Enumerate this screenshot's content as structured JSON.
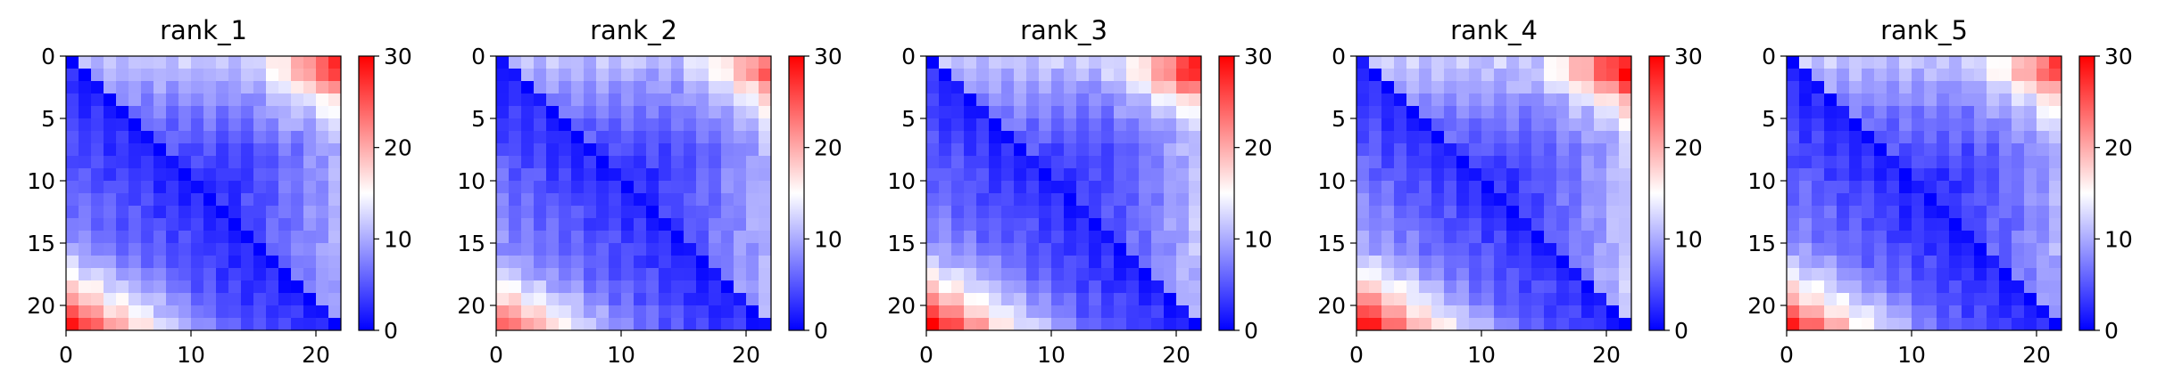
{
  "chart_data": [
    {
      "type": "heatmap",
      "title": "rank_1",
      "shape": [
        22,
        22
      ],
      "min_on_diagonal": 0,
      "cell_value_model": {
        "base": 1.5,
        "slope": 0.45,
        "profile_start": [
          26.5,
          26.5,
          22,
          17,
          12.5,
          10
        ],
        "profile_end": [
          25,
          21,
          18.5,
          17,
          16,
          14.5,
          13,
          11.5
        ],
        "bottom_left_peak": 28
      },
      "xticks": [
        0,
        10,
        20
      ],
      "yticks": [
        0,
        5,
        10,
        15,
        20
      ],
      "colorbar": {
        "min": 0,
        "max": 30,
        "ticks": [
          0,
          10,
          20,
          30
        ]
      }
    },
    {
      "type": "heatmap",
      "title": "rank_2",
      "shape": [
        22,
        22
      ],
      "min_on_diagonal": 0,
      "cell_value_model": {
        "base": 1.8,
        "slope": 0.45,
        "profile_start": [
          24,
          24,
          20,
          16,
          12.5,
          10.5
        ],
        "profile_end": [
          24,
          20,
          18,
          16,
          15,
          14,
          12.5,
          11
        ],
        "bottom_left_peak": 25
      },
      "xticks": [
        0,
        10,
        20
      ],
      "yticks": [
        0,
        5,
        10,
        15,
        20
      ],
      "colorbar": {
        "min": 0,
        "max": 30,
        "ticks": [
          0,
          10,
          20,
          30
        ]
      }
    },
    {
      "type": "heatmap",
      "title": "rank_3",
      "shape": [
        22,
        22
      ],
      "min_on_diagonal": 0,
      "cell_value_model": {
        "base": 1.8,
        "slope": 0.45,
        "profile_start": [
          28,
          28,
          24,
          18.5,
          13.5,
          11
        ],
        "profile_end": [
          25,
          21,
          18.5,
          17,
          16,
          14.5,
          13,
          11.5
        ],
        "bottom_left_peak": 29
      },
      "xticks": [
        0,
        10,
        20
      ],
      "yticks": [
        0,
        5,
        10,
        15,
        20
      ],
      "colorbar": {
        "min": 0,
        "max": 30,
        "ticks": [
          0,
          10,
          20,
          30
        ]
      }
    },
    {
      "type": "heatmap",
      "title": "rank_4",
      "shape": [
        22,
        22
      ],
      "min_on_diagonal": 0,
      "cell_value_model": {
        "base": 2.0,
        "slope": 0.5,
        "profile_start": [
          29,
          29,
          25,
          19,
          14,
          11.5
        ],
        "profile_end": [
          26,
          22,
          19.5,
          17.5,
          16.5,
          15,
          13.5,
          12
        ],
        "bottom_left_peak": 30
      },
      "xticks": [
        0,
        10,
        20
      ],
      "yticks": [
        0,
        5,
        10,
        15,
        20
      ],
      "colorbar": {
        "min": 0,
        "max": 30,
        "ticks": [
          0,
          10,
          20,
          30
        ]
      }
    },
    {
      "type": "heatmap",
      "title": "rank_5",
      "shape": [
        22,
        22
      ],
      "min_on_diagonal": 0,
      "cell_value_model": {
        "base": 1.6,
        "slope": 0.45,
        "profile_start": [
          26,
          26,
          21.5,
          16.5,
          12.5,
          10
        ],
        "profile_end": [
          25,
          21,
          18.5,
          17,
          16,
          14.5,
          13,
          11.5
        ],
        "bottom_left_peak": 27
      },
      "xticks": [
        0,
        10,
        20
      ],
      "yticks": [
        0,
        5,
        10,
        15,
        20
      ],
      "colorbar": {
        "min": 0,
        "max": 30,
        "ticks": [
          0,
          10,
          20,
          30
        ]
      }
    }
  ],
  "colormap": {
    "low": "#0000ff",
    "mid": "#ffffff",
    "high": "#ff0000"
  }
}
